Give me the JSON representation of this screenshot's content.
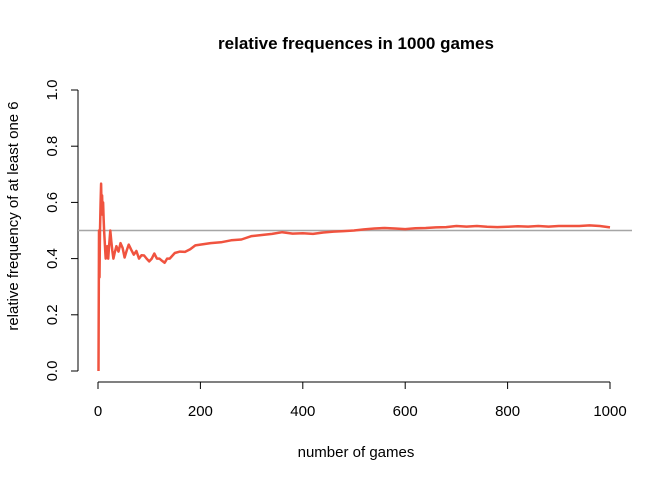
{
  "chart_data": {
    "type": "line",
    "title": "relative frequences in 1000 games",
    "xlabel": "number of games",
    "ylabel": "relative frequency of at least one 6",
    "xlim": [
      0,
      1000
    ],
    "ylim": [
      0,
      1
    ],
    "xticks": [
      0,
      200,
      400,
      600,
      800,
      1000
    ],
    "yticks": [
      0.0,
      0.2,
      0.4,
      0.6,
      0.8,
      1.0
    ],
    "xtick_labels": [
      "0",
      "200",
      "400",
      "600",
      "800",
      "1000"
    ],
    "ytick_labels": [
      "0.0",
      "0.2",
      "0.4",
      "0.6",
      "0.8",
      "1.0"
    ],
    "reference_line": 0.5,
    "reference_color": "#a6a6a6",
    "line_color": "#f0533f",
    "grid": false,
    "series": [
      {
        "x": [
          1,
          2,
          3,
          4,
          5,
          6,
          7,
          8,
          9,
          10,
          11,
          12,
          13,
          14,
          15,
          16,
          18,
          20,
          22,
          24,
          26,
          28,
          30,
          33,
          36,
          40,
          44,
          48,
          52,
          56,
          60,
          65,
          70,
          75,
          80,
          85,
          90,
          95,
          100,
          105,
          110,
          115,
          120,
          125,
          130,
          135,
          140,
          150,
          160,
          170,
          180,
          190,
          200,
          220,
          240,
          260,
          280,
          300,
          320,
          340,
          360,
          380,
          400,
          420,
          440,
          460,
          480,
          500,
          520,
          540,
          560,
          580,
          600,
          620,
          640,
          660,
          680,
          700,
          720,
          740,
          760,
          780,
          800,
          820,
          840,
          860,
          880,
          900,
          920,
          940,
          960,
          980,
          1000
        ],
        "values": [
          0.0,
          0.5,
          0.333,
          0.5,
          0.6,
          0.667,
          0.571,
          0.625,
          0.556,
          0.6,
          0.545,
          0.5,
          0.462,
          0.429,
          0.4,
          0.438,
          0.444,
          0.4,
          0.455,
          0.5,
          0.462,
          0.429,
          0.4,
          0.424,
          0.444,
          0.425,
          0.455,
          0.438,
          0.404,
          0.429,
          0.45,
          0.431,
          0.414,
          0.427,
          0.4,
          0.412,
          0.411,
          0.4,
          0.39,
          0.4,
          0.418,
          0.4,
          0.4,
          0.392,
          0.385,
          0.4,
          0.4,
          0.42,
          0.425,
          0.424,
          0.433,
          0.447,
          0.45,
          0.455,
          0.458,
          0.465,
          0.468,
          0.48,
          0.484,
          0.488,
          0.494,
          0.489,
          0.49,
          0.488,
          0.493,
          0.496,
          0.498,
          0.5,
          0.504,
          0.507,
          0.509,
          0.507,
          0.505,
          0.508,
          0.509,
          0.511,
          0.512,
          0.516,
          0.514,
          0.516,
          0.513,
          0.512,
          0.513,
          0.515,
          0.514,
          0.516,
          0.514,
          0.516,
          0.516,
          0.516,
          0.518,
          0.516,
          0.511
        ]
      }
    ]
  }
}
